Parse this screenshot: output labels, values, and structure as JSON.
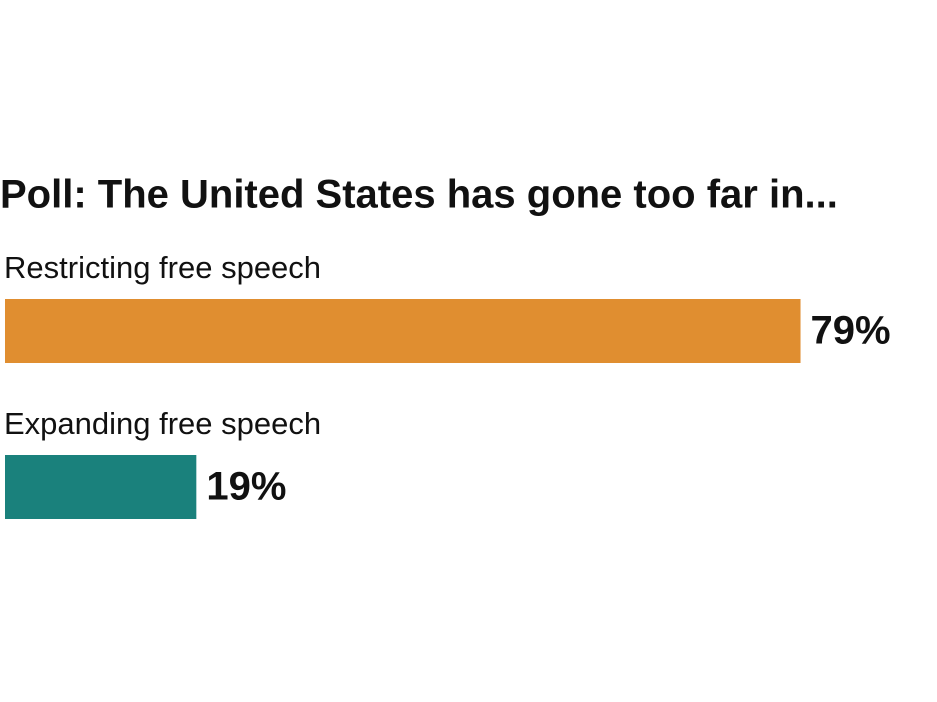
{
  "chart_data": {
    "type": "hbar",
    "title": "Poll: The United States has gone too far in...",
    "categories": [
      "Restricting free speech",
      "Expanding free speech"
    ],
    "values": [
      79,
      19
    ],
    "value_labels": [
      "79%",
      "19%"
    ],
    "colors": [
      "#e08e30",
      "#1a817c"
    ]
  }
}
